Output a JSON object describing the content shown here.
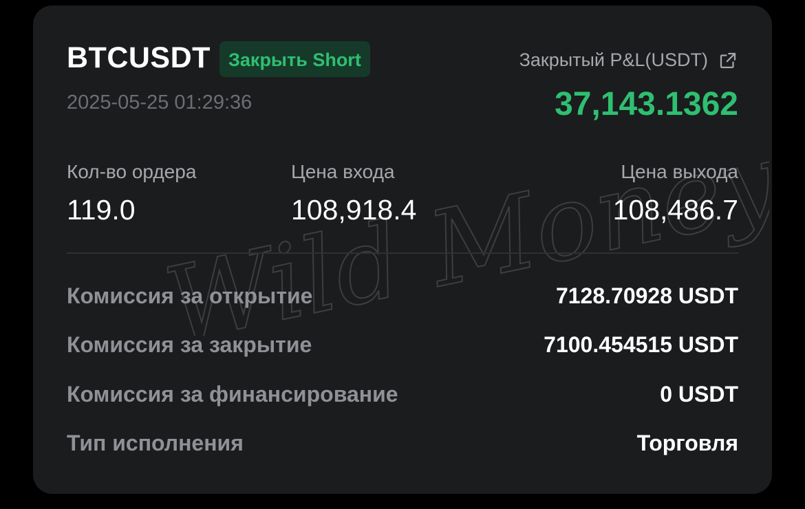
{
  "header": {
    "symbol": "BTCUSDT",
    "badge": "Закрыть Short",
    "timestamp": "2025-05-25 01:29:36"
  },
  "pnl": {
    "label": "Закрытый P&L(USDT)",
    "value": "37,143.1362",
    "icon": "external-link-icon"
  },
  "stats": [
    {
      "label": "Кол-во ордера",
      "value": "119.0"
    },
    {
      "label": "Цена входа",
      "value": "108,918.4"
    },
    {
      "label": "Цена выхода",
      "value": "108,486.7"
    }
  ],
  "details": [
    {
      "label": "Комиссия за открытие",
      "value": "7128.70928 USDT"
    },
    {
      "label": "Комиссия за закрытие",
      "value": "7100.454515 USDT"
    },
    {
      "label": "Комиссия за финансирование",
      "value": "0 USDT"
    },
    {
      "label": "Тип исполнения",
      "value": "Торговля"
    }
  ],
  "watermark": "Wild Money Pro",
  "colors": {
    "background": "#000000",
    "card": "#1b1c1e",
    "accent_green": "#2fbf71",
    "badge_bg": "#163a2a",
    "muted_text": "#a6a8ad"
  }
}
